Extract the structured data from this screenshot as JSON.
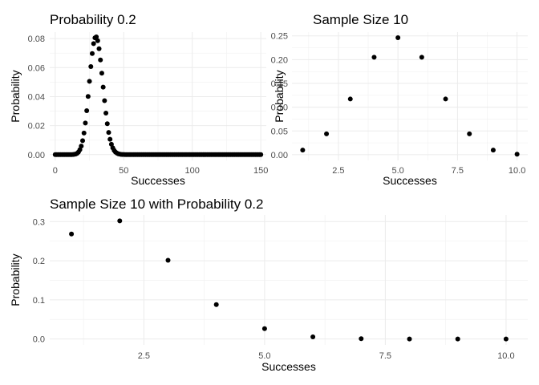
{
  "chart_data": [
    {
      "type": "scatter",
      "title": "Probability 0.2",
      "xlabel": "Successes",
      "ylabel": "Probability",
      "xlim": [
        -4,
        154
      ],
      "ylim": [
        -0.004,
        0.0845
      ],
      "x_major_ticks": [
        0,
        50,
        100,
        150
      ],
      "x_minor_ticks": [
        25,
        75,
        125
      ],
      "y_major_ticks": [
        0.0,
        0.02,
        0.04,
        0.06,
        0.08
      ],
      "y_minor_ticks": [
        0.01,
        0.03,
        0.05,
        0.07
      ],
      "x_tick_labels": [
        "0",
        "50",
        "100",
        "150"
      ],
      "y_tick_labels": [
        "0.00",
        "0.02",
        "0.04",
        "0.06",
        "0.08"
      ],
      "distribution": {
        "family": "binomial",
        "n": 150,
        "p": 0.2,
        "x_from": 0,
        "x_to": 150
      },
      "grid": true,
      "legend": "none"
    },
    {
      "type": "scatter",
      "title": "Sample Size 10",
      "xlabel": "Successes",
      "ylabel": "Probability",
      "xlim": [
        0.55,
        10.45
      ],
      "ylim": [
        -0.012,
        0.258
      ],
      "x_major_ticks": [
        2.5,
        5.0,
        7.5,
        10.0
      ],
      "x_minor_ticks": [
        1.25,
        3.75,
        6.25,
        8.75
      ],
      "y_major_ticks": [
        0.0,
        0.05,
        0.1,
        0.15,
        0.2,
        0.25
      ],
      "y_minor_ticks": [
        0.025,
        0.075,
        0.125,
        0.175,
        0.225
      ],
      "x_tick_labels": [
        "2.5",
        "5.0",
        "7.5",
        "10.0"
      ],
      "y_tick_labels": [
        "0.00",
        "0.05",
        "0.10",
        "0.15",
        "0.20",
        "0.25"
      ],
      "x": [
        1,
        2,
        3,
        4,
        5,
        6,
        7,
        8,
        9,
        10
      ],
      "y": [
        0.0098,
        0.0439,
        0.1172,
        0.2051,
        0.2461,
        0.2051,
        0.1172,
        0.0439,
        0.0098,
        0.001
      ],
      "grid": true,
      "legend": "none"
    },
    {
      "type": "scatter",
      "title": "Sample Size 10 with Probability 0.2",
      "xlabel": "Successes",
      "ylabel": "Probability",
      "xlim": [
        0.55,
        10.45
      ],
      "ylim": [
        -0.015,
        0.317
      ],
      "x_major_ticks": [
        2.5,
        5.0,
        7.5,
        10.0
      ],
      "x_minor_ticks": [
        1.25,
        3.75,
        6.25,
        8.75
      ],
      "y_major_ticks": [
        0.0,
        0.1,
        0.2,
        0.3
      ],
      "y_minor_ticks": [
        0.05,
        0.15,
        0.25
      ],
      "x_tick_labels": [
        "2.5",
        "5.0",
        "7.5",
        "10.0"
      ],
      "y_tick_labels": [
        "0.0",
        "0.1",
        "0.2",
        "0.3"
      ],
      "x": [
        1,
        2,
        3,
        4,
        5,
        6,
        7,
        8,
        9,
        10
      ],
      "y": [
        0.2684,
        0.302,
        0.2013,
        0.0881,
        0.0264,
        0.0055,
        0.0008,
        0.0001,
        0.0,
        0.0
      ],
      "grid": true,
      "legend": "none"
    }
  ]
}
